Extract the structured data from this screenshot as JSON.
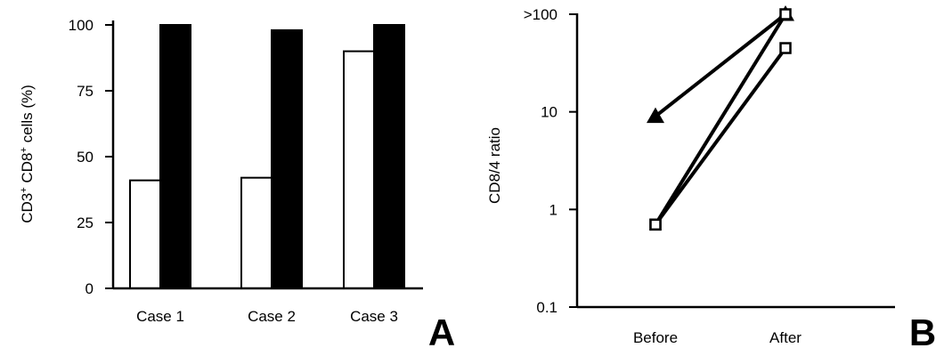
{
  "chart_data": [
    {
      "type": "bar",
      "panel_label": "A",
      "ylabel": {
        "main": "CD3",
        "sup1": "+",
        "mid": " CD8",
        "sup2": "+",
        "tail": " cells (%)"
      },
      "xlabel": "",
      "categories": [
        "Case 1",
        "Case 2",
        "Case 3"
      ],
      "ylim": [
        0,
        100
      ],
      "yticks": [
        "0",
        "25",
        "50",
        "75",
        "100"
      ],
      "legend": "none",
      "grid": false,
      "series": [
        {
          "values": [
            41,
            42,
            90
          ],
          "color": "#ffffff"
        },
        {
          "values": [
            100,
            98,
            100
          ],
          "color": "#000000"
        }
      ]
    },
    {
      "type": "line",
      "panel_label": "B",
      "ylabel": "CD8/4 ratio",
      "xlabel": "",
      "categories": [
        "Before",
        "After"
      ],
      "yscale": "log",
      "ylim": [
        0.1,
        100
      ],
      "yticks": [
        "0.1",
        "1",
        "10",
        ">100"
      ],
      "legend": "none",
      "grid": false,
      "series": [
        {
          "marker": "triangle",
          "values": [
            9,
            100
          ]
        },
        {
          "marker": "square",
          "values": [
            0.7,
            100
          ]
        },
        {
          "marker": "square",
          "values": [
            0.7,
            45
          ]
        }
      ]
    }
  ]
}
